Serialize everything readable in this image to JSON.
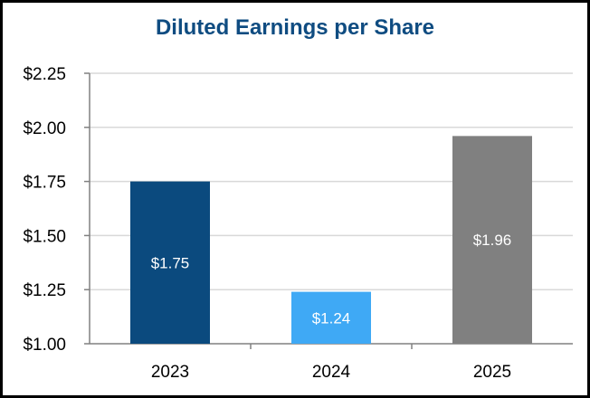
{
  "chart_data": {
    "type": "bar",
    "title": "Diluted Earnings per Share",
    "categories": [
      "2023",
      "2024",
      "2025"
    ],
    "values": [
      1.75,
      1.24,
      1.96
    ],
    "value_labels": [
      "$1.75",
      "$1.24",
      "$1.96"
    ],
    "bar_colors": [
      "#0b4a7e",
      "#3fa9f5",
      "#808080"
    ],
    "yticks": [
      1.0,
      1.25,
      1.5,
      1.75,
      2.0,
      2.25
    ],
    "ytick_labels": [
      "$1.00",
      "$1.25",
      "$1.50",
      "$1.75",
      "$2.00",
      "$2.25"
    ],
    "ylim": [
      1.0,
      2.25
    ],
    "grid": true,
    "title_color": "#0f4c81",
    "grid_color": "#d9d9d9",
    "axis_color": "#808080"
  }
}
